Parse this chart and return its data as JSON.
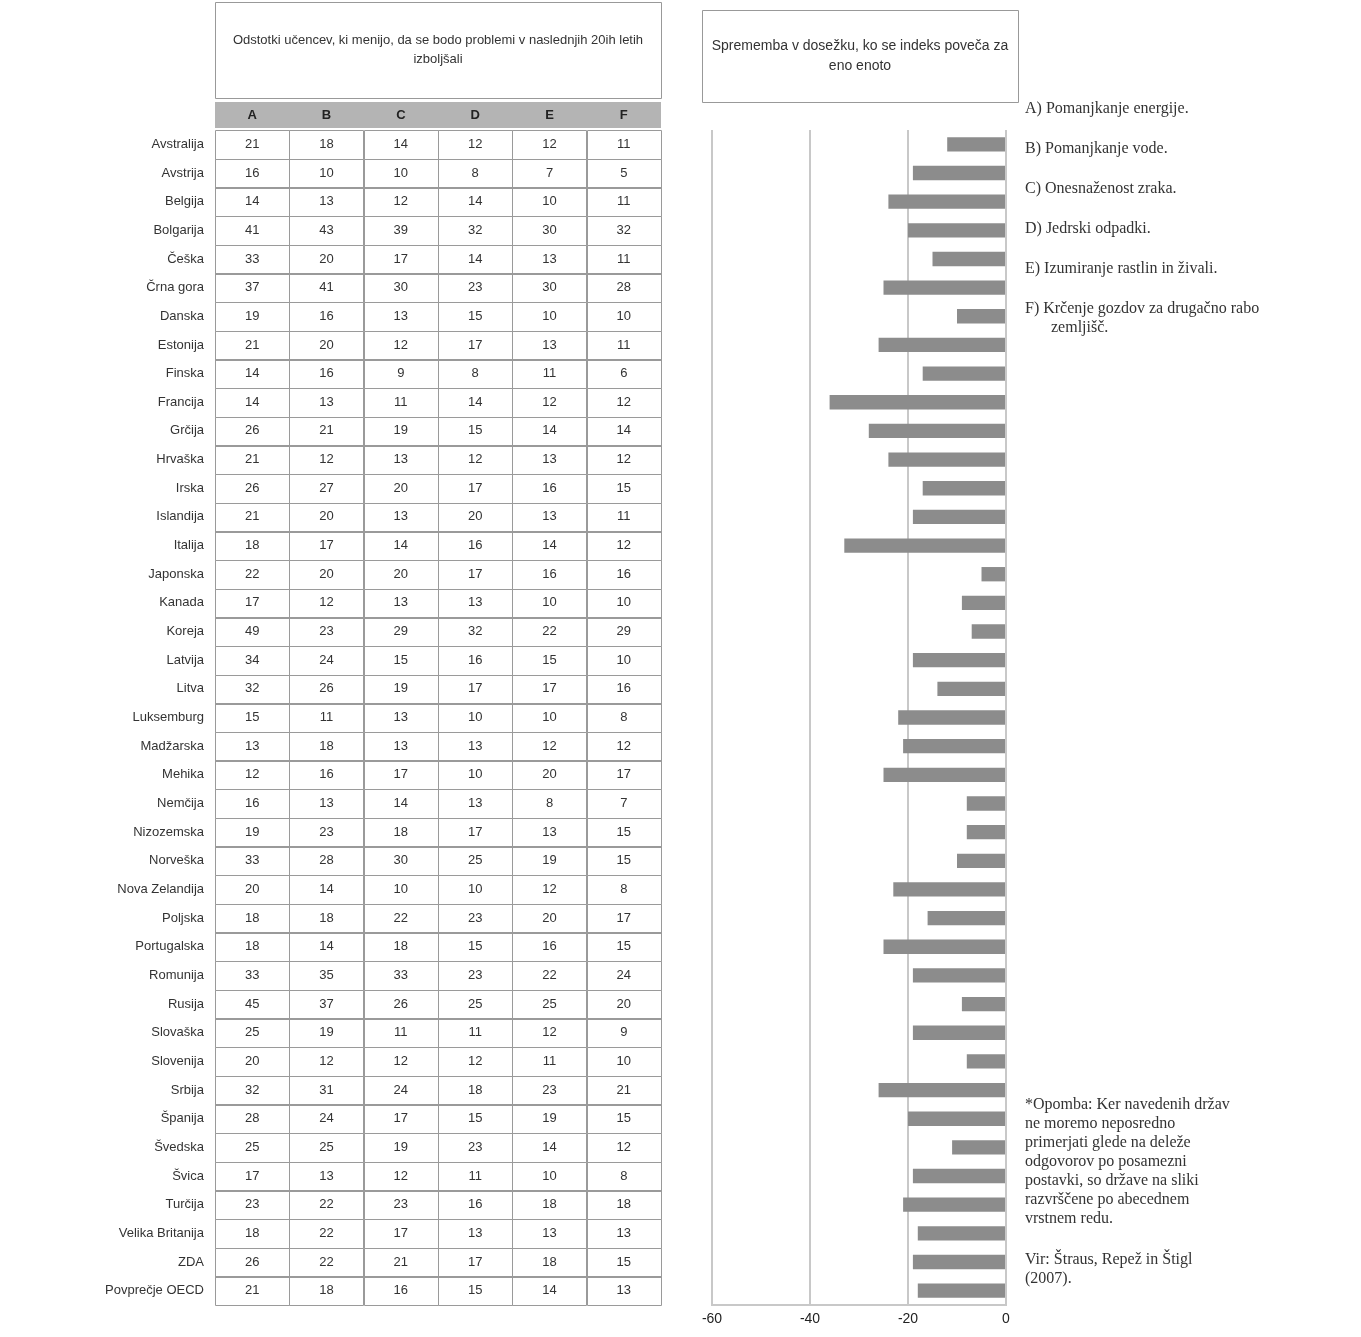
{
  "chart_data": [
    {
      "type": "heatmap",
      "title": "Odstotki učencev, ki menijo, da se bodo problemi v naslednjih 20ih letih izboljšali",
      "categories": [
        "A",
        "B",
        "C",
        "D",
        "E",
        "F"
      ],
      "y_categories": [
        "Avstralija",
        "Avstrija",
        "Belgija",
        "Bolgarija",
        "Češka",
        "Črna gora",
        "Danska",
        "Estonija",
        "Finska",
        "Francija",
        "Grčija",
        "Hrvaška",
        "Irska",
        "Islandija",
        "Italija",
        "Japonska",
        "Kanada",
        "Koreja",
        "Latvija",
        "Litva",
        "Luksemburg",
        "Madžarska",
        "Mehika",
        "Nemčija",
        "Nizozemska",
        "Norveška",
        "Nova Zelandija",
        "Poljska",
        "Portugalska",
        "Romunija",
        "Rusija",
        "Slovaška",
        "Slovenija",
        "Srbija",
        "Španija",
        "Švedska",
        "Švica",
        "Turčija",
        "Velika Britanija",
        "ZDA",
        "Povprečje OECD"
      ],
      "cells": [
        [
          21,
          18,
          14,
          12,
          12,
          11
        ],
        [
          16,
          10,
          10,
          8,
          7,
          5
        ],
        [
          14,
          13,
          12,
          14,
          10,
          11
        ],
        [
          41,
          43,
          39,
          32,
          30,
          32
        ],
        [
          33,
          20,
          17,
          14,
          13,
          11
        ],
        [
          37,
          41,
          30,
          23,
          30,
          28
        ],
        [
          19,
          16,
          13,
          15,
          10,
          10
        ],
        [
          21,
          20,
          12,
          17,
          13,
          11
        ],
        [
          14,
          16,
          9,
          8,
          11,
          6
        ],
        [
          14,
          13,
          11,
          14,
          12,
          12
        ],
        [
          26,
          21,
          19,
          15,
          14,
          14
        ],
        [
          21,
          12,
          13,
          12,
          13,
          12
        ],
        [
          26,
          27,
          20,
          17,
          16,
          15
        ],
        [
          21,
          20,
          13,
          20,
          13,
          11
        ],
        [
          18,
          17,
          14,
          16,
          14,
          12
        ],
        [
          22,
          20,
          20,
          17,
          16,
          16
        ],
        [
          17,
          12,
          13,
          13,
          10,
          10
        ],
        [
          49,
          23,
          29,
          32,
          22,
          29
        ],
        [
          34,
          24,
          15,
          16,
          15,
          10
        ],
        [
          32,
          26,
          19,
          17,
          17,
          16
        ],
        [
          15,
          11,
          13,
          10,
          10,
          8
        ],
        [
          13,
          18,
          13,
          13,
          12,
          12
        ],
        [
          12,
          16,
          17,
          10,
          20,
          17
        ],
        [
          16,
          13,
          14,
          13,
          8,
          7
        ],
        [
          19,
          23,
          18,
          17,
          13,
          15
        ],
        [
          33,
          28,
          30,
          25,
          19,
          15
        ],
        [
          20,
          14,
          10,
          10,
          12,
          8
        ],
        [
          18,
          18,
          22,
          23,
          20,
          17
        ],
        [
          18,
          14,
          18,
          15,
          16,
          15
        ],
        [
          33,
          35,
          33,
          23,
          22,
          24
        ],
        [
          45,
          37,
          26,
          25,
          25,
          20
        ],
        [
          25,
          19,
          11,
          11,
          12,
          9
        ],
        [
          20,
          12,
          12,
          12,
          11,
          10
        ],
        [
          32,
          31,
          24,
          18,
          23,
          21
        ],
        [
          28,
          24,
          17,
          15,
          19,
          15
        ],
        [
          25,
          25,
          19,
          23,
          14,
          12
        ],
        [
          17,
          13,
          12,
          11,
          10,
          8
        ],
        [
          23,
          22,
          23,
          16,
          18,
          18
        ],
        [
          18,
          22,
          17,
          13,
          13,
          13
        ],
        [
          26,
          22,
          21,
          17,
          18,
          15
        ],
        [
          21,
          18,
          16,
          15,
          14,
          13
        ]
      ],
      "data_labels": true
    },
    {
      "type": "bar",
      "orientation": "horizontal",
      "title": "Sprememba v dosežku, ko se indeks poveča za eno enoto",
      "categories": [
        null,
        null,
        null,
        null,
        null,
        null,
        null,
        null,
        null,
        null,
        null,
        null,
        null,
        null,
        null,
        null,
        null,
        null,
        null,
        null,
        null,
        null,
        null,
        null,
        null,
        null,
        null,
        null,
        null,
        null,
        null,
        null,
        null,
        null,
        null,
        null,
        null,
        null,
        null,
        null,
        null
      ],
      "values": [
        -12,
        -19,
        -24,
        -20,
        -15,
        -25,
        -10,
        -26,
        -17,
        -36,
        -28,
        -24,
        -17,
        -19,
        -33,
        -5,
        -9,
        -7,
        -19,
        -14,
        -22,
        -21,
        -25,
        -8,
        -8,
        -10,
        -23,
        -16,
        -25,
        -19,
        -9,
        -19,
        -8,
        -26,
        -20,
        -11,
        -19,
        -21,
        -18,
        -19,
        -18
      ],
      "color": "#8c8c8c",
      "xlim": [
        -60,
        0
      ],
      "xticks": [
        -60,
        -40,
        -20,
        0
      ],
      "grid": "x",
      "tick_labels": "x"
    },
    {
      "type": "other",
      "annotations": [
        "A)  Pomanjkanje energije.",
        "B)  Pomanjkanje vode.",
        "C)  Onesnaženost zraka.",
        "D)  Jedrski odpadki.",
        "E)  Izumiranje rastlin in živali.",
        "F)  Krčenje gozdov za drugačno rabo zemljišč.",
        "*Opomba: Ker navedenih držav ne moremo neposredno primerjati glede na deleže odgovorov po posamezni postavki, so države na sliki razvrščene po abecednem vrstnem redu.",
        "Vir: Štraus, Repež in Štigl (2007)."
      ]
    }
  ]
}
